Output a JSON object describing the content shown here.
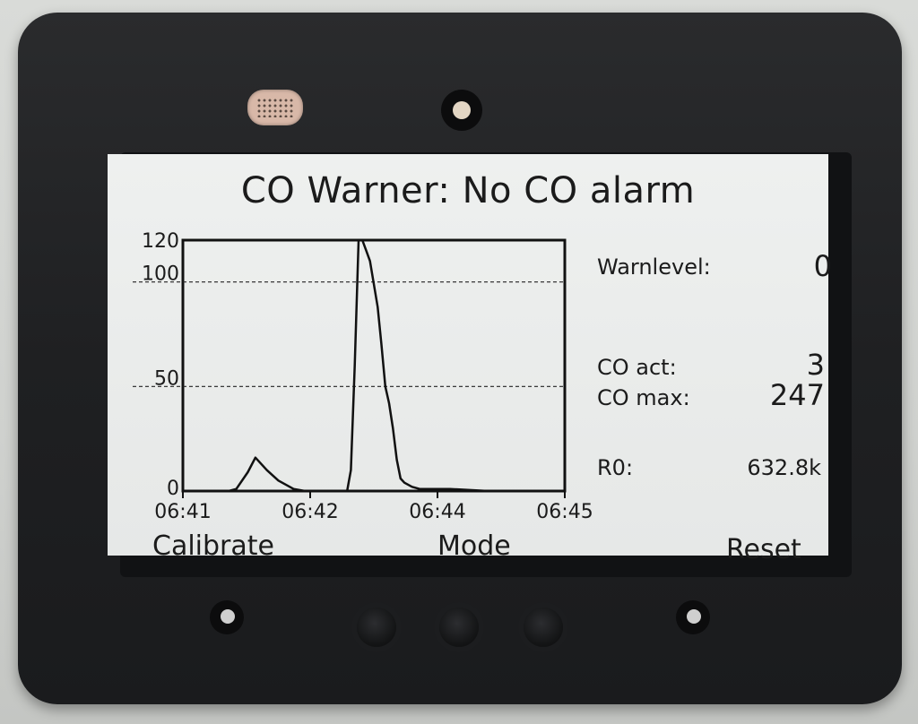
{
  "display": {
    "title": "CO Warner: No CO alarm",
    "warnlevel_label": "Warnlevel:",
    "warnlevel_value": "0",
    "co_act_label": "CO act:",
    "co_act_value": "3",
    "co_max_label": "CO max:",
    "co_max_value": "247",
    "r0_label": "R0:",
    "r0_value": "632.8k"
  },
  "softkeys": {
    "left": "Calibrate",
    "center": "Mode",
    "right": "Reset"
  },
  "chart_data": {
    "type": "line",
    "title": "",
    "xlabel": "",
    "ylabel": "",
    "ylim": [
      0,
      120
    ],
    "y_ticks": [
      "120",
      "100",
      "50",
      "0"
    ],
    "y_tick_values": [
      120,
      100,
      50,
      0
    ],
    "x_ticks": [
      "06:41",
      "06:42",
      "06:44",
      "06:45"
    ],
    "gridlines_y": [
      100,
      50
    ],
    "series": [
      {
        "x": [
          0,
          0.04,
          0.08,
          0.12,
          0.14,
          0.17,
          0.19,
          0.22,
          0.25,
          0.29,
          0.32,
          0.35,
          0.37,
          0.39,
          0.41,
          0.43,
          0.44,
          0.45,
          0.46,
          0.47,
          0.48,
          0.49,
          0.51,
          0.52,
          0.53,
          0.54,
          0.55,
          0.56,
          0.57,
          0.58,
          0.6,
          0.62,
          0.65,
          0.7,
          0.8,
          0.9,
          1.0
        ],
        "values": [
          0,
          0,
          0,
          0,
          1,
          9,
          16,
          10,
          5,
          1,
          0,
          0,
          0,
          0,
          0,
          0,
          10,
          60,
          120,
          120,
          115,
          110,
          88,
          70,
          50,
          42,
          30,
          15,
          6,
          4,
          2,
          1,
          1,
          1,
          0,
          0,
          0
        ]
      }
    ]
  }
}
